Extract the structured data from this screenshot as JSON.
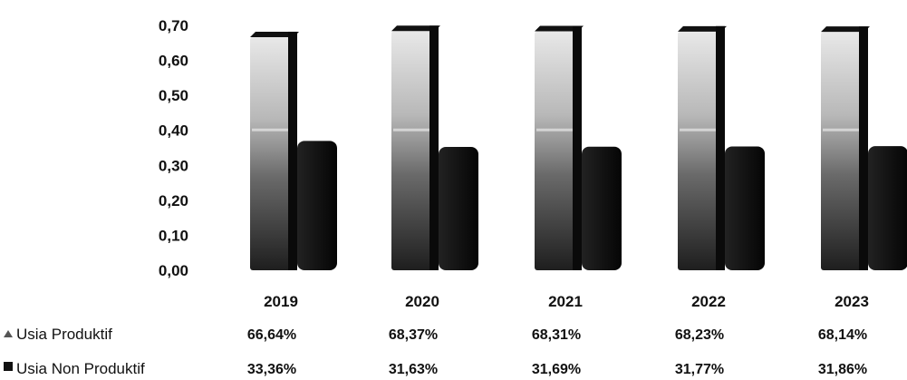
{
  "chart_data": {
    "type": "bar",
    "title": "",
    "xlabel": "",
    "ylabel": "",
    "ylim": [
      0,
      0.7
    ],
    "yticks": [
      "0,70",
      "0,60",
      "0,50",
      "0,40",
      "0,30",
      "0,20",
      "0,10",
      "0,00"
    ],
    "categories": [
      "2019",
      "2020",
      "2021",
      "2022",
      "2023"
    ],
    "series": [
      {
        "name": "Usia Produktif",
        "values": [
          0.6664,
          0.6837,
          0.6831,
          0.6823,
          0.6814
        ],
        "labels": [
          "66,64%",
          "68,37%",
          "68,31%",
          "68,23%",
          "68,14%"
        ],
        "color": "#9a9a9a"
      },
      {
        "name": "Usia Non Produktif",
        "values": [
          0.3336,
          0.3163,
          0.3169,
          0.3177,
          0.3186
        ],
        "labels": [
          "33,36%",
          "31,63%",
          "31,69%",
          "31,77%",
          "31,86%"
        ],
        "color": "#101010"
      }
    ],
    "grid": false,
    "legend": "data-table-bottom",
    "stacked_display": false
  }
}
